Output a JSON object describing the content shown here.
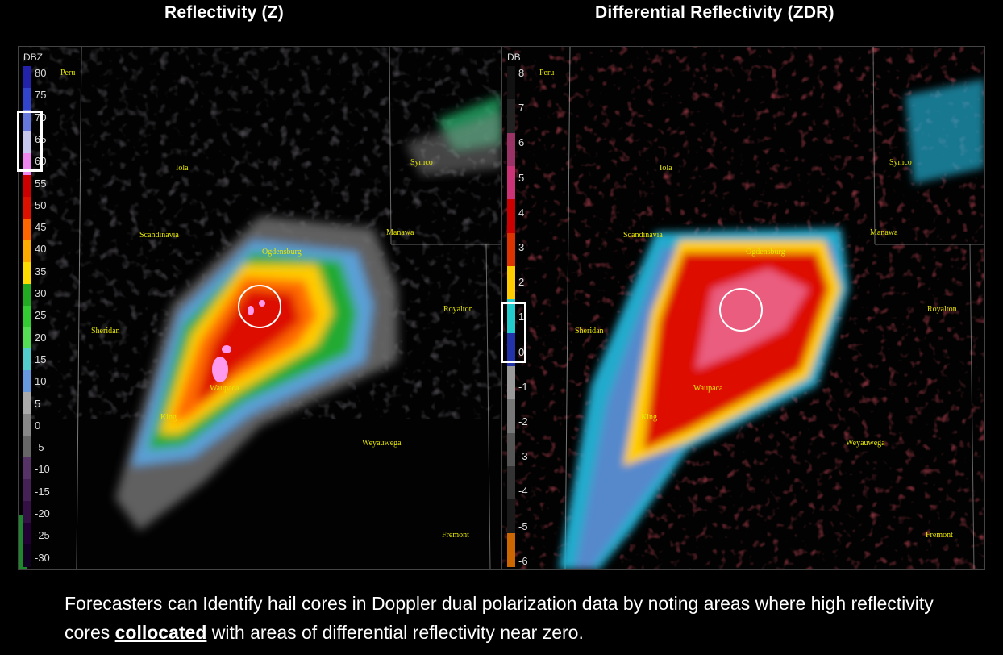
{
  "titles": {
    "left": "Reflectivity (Z)",
    "right": "Differential Reflectivity (ZDR)"
  },
  "left_panel": {
    "unit": "DBZ",
    "scale": [
      "80",
      "75",
      "70",
      "65",
      "60",
      "55",
      "50",
      "45",
      "40",
      "35",
      "30",
      "25",
      "20",
      "15",
      "10",
      "5",
      "0",
      "-5",
      "-10",
      "-15",
      "-20",
      "-25",
      "-30"
    ],
    "scale_colors": [
      "#2222aa",
      "#3344cc",
      "#6677dd",
      "#c8c8ee",
      "#ee88ee",
      "#cc0000",
      "#dd1100",
      "#ff6600",
      "#ffaa00",
      "#ffdd00",
      "#22aa22",
      "#33cc33",
      "#55dd55",
      "#55cccc",
      "#6699dd",
      "#aaaaaa",
      "#888888",
      "#666666",
      "#553366",
      "#442255",
      "#331144",
      "#220033",
      "#110022"
    ],
    "towns": [
      "Peru",
      "Iola",
      "Symco",
      "Scandinavia",
      "Ogdensburg",
      "Manawa",
      "Royalton",
      "Sheridan",
      "Waupaca",
      "King",
      "Weyauwega",
      "Fremont"
    ]
  },
  "right_panel": {
    "unit": "DB",
    "scale": [
      "8",
      "7",
      "6",
      "5",
      "4",
      "3",
      "2",
      "1",
      "0",
      "-1",
      "-2",
      "-3",
      "-4",
      "-5",
      "-6"
    ],
    "scale_colors": [
      "#111111",
      "#222222",
      "#993366",
      "#cc3377",
      "#cc0000",
      "#dd3300",
      "#ffcc00",
      "#22cccc",
      "#2233aa",
      "#999999",
      "#777777",
      "#555555",
      "#333333",
      "#1a1a1a",
      "#cc6600"
    ],
    "towns": [
      "Peru",
      "Iola",
      "Symco",
      "Scandinavia",
      "Ogdensburg",
      "Manawa",
      "Royalton",
      "Sheridan",
      "Waupaca",
      "King",
      "Weyauwega",
      "Fremont"
    ]
  },
  "caption": {
    "part1": "Forecasters can Identify hail cores in Doppler dual polarization data by noting areas where high reflectivity cores ",
    "emphasis": "collocated",
    "part2": " with areas of differential reflectivity near zero."
  }
}
